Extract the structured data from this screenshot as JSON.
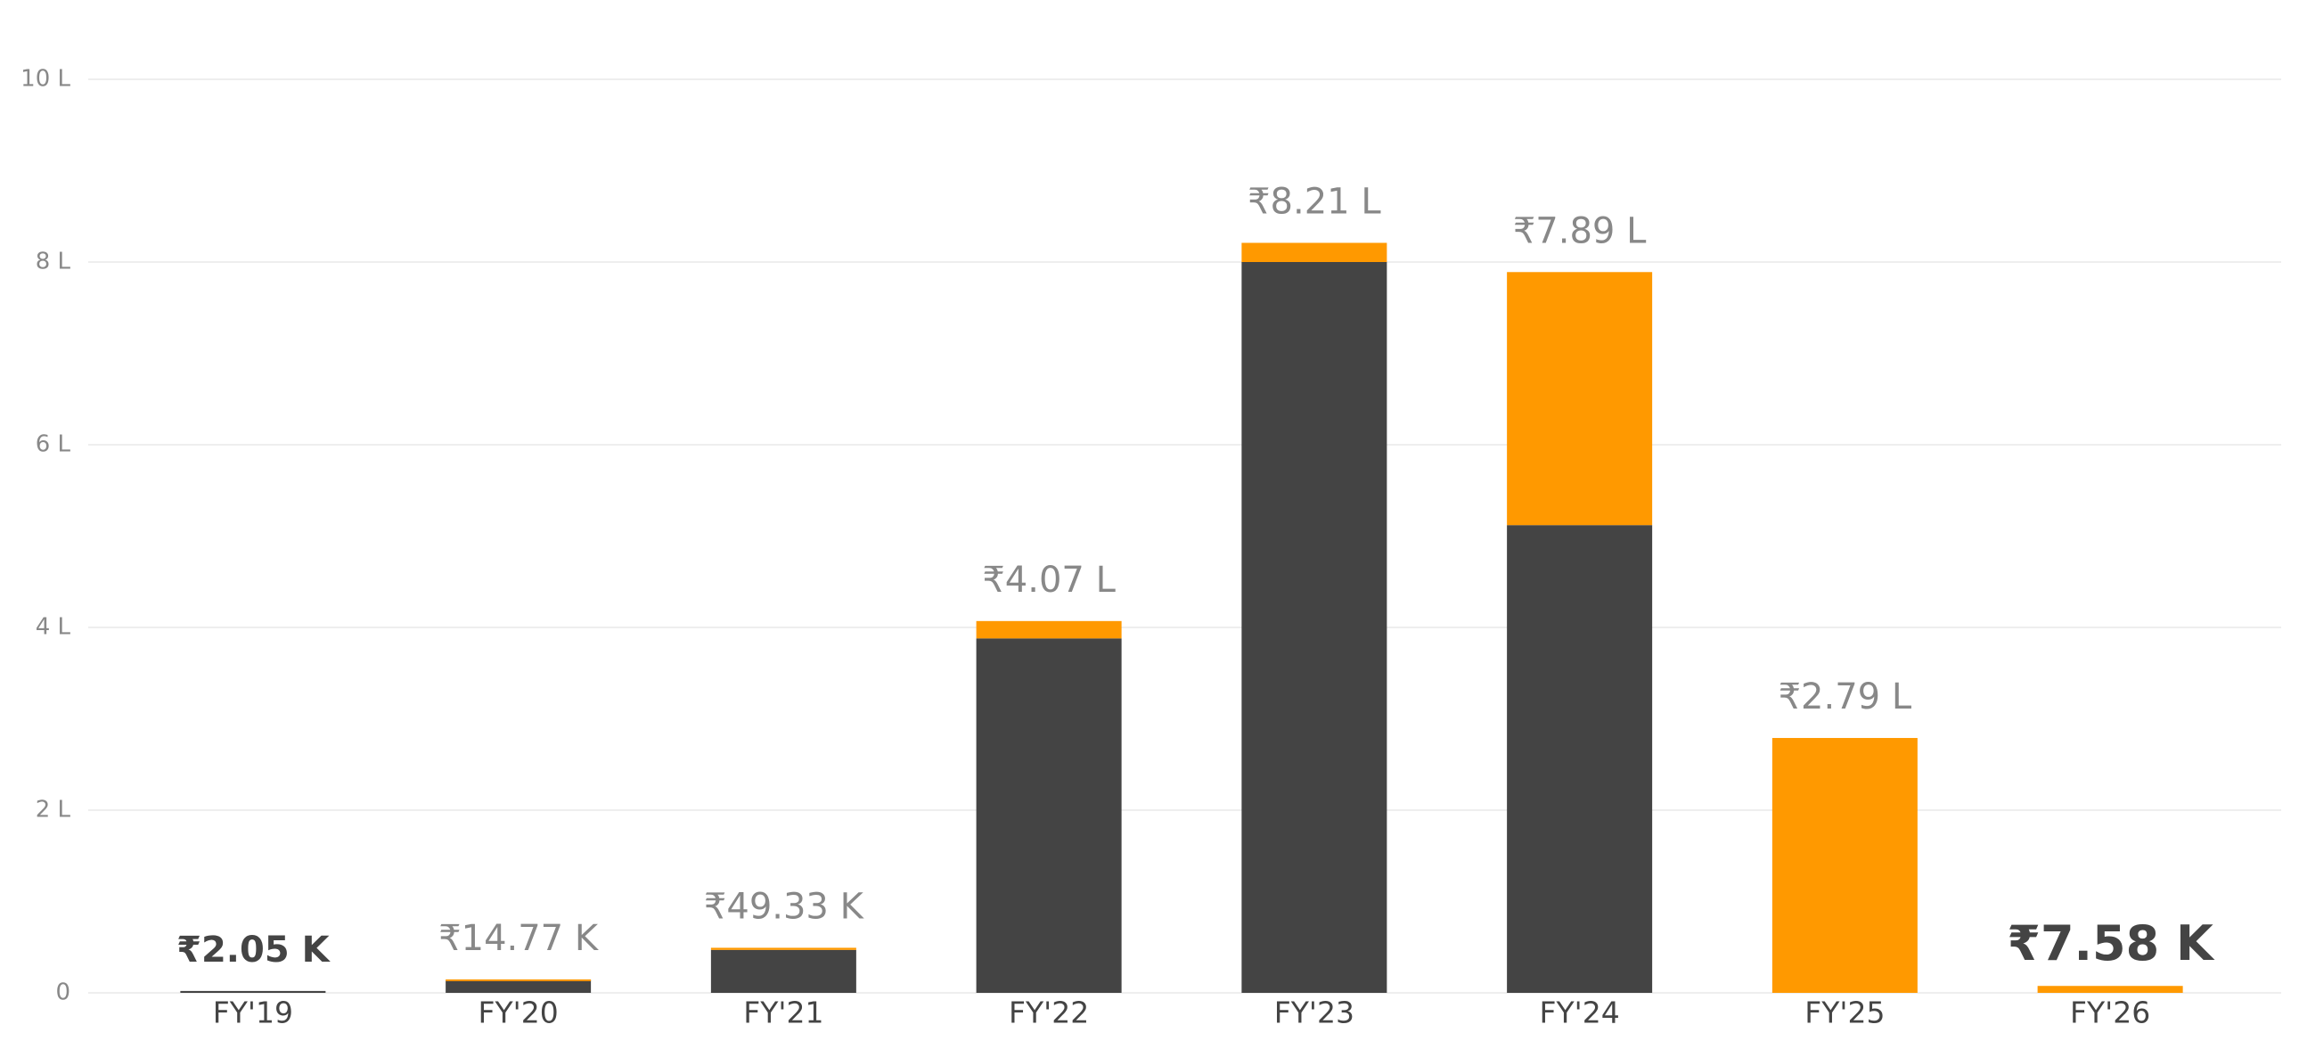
{
  "chart_data": {
    "type": "stacked-bar",
    "categories": [
      "FY'19",
      "FY'20",
      "FY'21",
      "FY'22",
      "FY'23",
      "FY'24",
      "FY'25",
      "FY'26"
    ],
    "series": [
      {
        "color": "#444444",
        "values": [
          2050,
          13770,
          47000,
          388000,
          800000,
          512000,
          0,
          0
        ]
      },
      {
        "color": "#ff9900",
        "values": [
          0,
          1000,
          2330,
          19000,
          21000,
          277000,
          279000,
          7580
        ]
      }
    ],
    "totals": [
      2050,
      14770,
      49330,
      407000,
      821000,
      789000,
      279000,
      7580
    ],
    "total_labels": [
      "₹2.05 K",
      "₹14.77 K",
      "₹49.33 K",
      "₹4.07 L",
      "₹8.21 L",
      "₹7.89 L",
      "₹2.79 L",
      "₹7.58 K"
    ],
    "ylim": [
      0,
      1000000
    ],
    "yticks": [
      0,
      {
        "value": 200000,
        "label": "2 L"
      },
      {
        "value": 400000,
        "label": "4 L"
      },
      {
        "value": 600000,
        "label": "6 L"
      },
      {
        "value": 800000,
        "label": "8 L"
      },
      {
        "value": 1000000,
        "label": "10 L"
      }
    ],
    "grid": true
  }
}
